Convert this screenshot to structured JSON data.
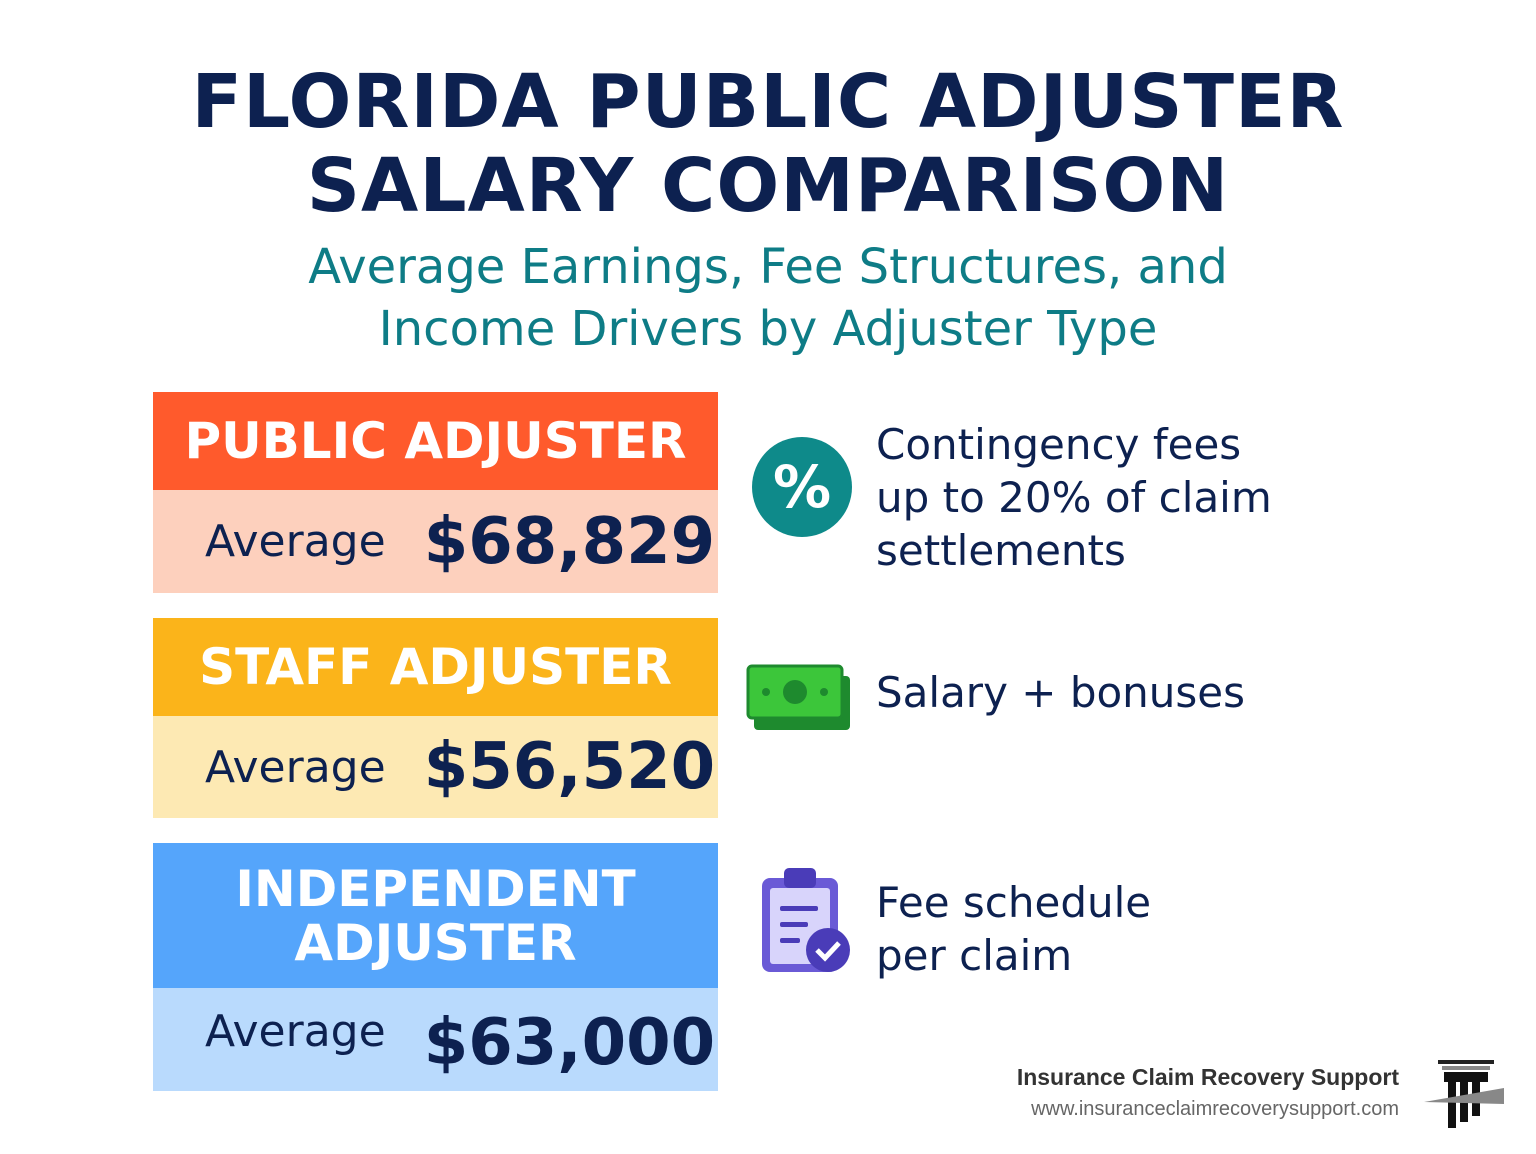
{
  "title": {
    "line1": "FLORIDA PUBLIC ADJUSTER",
    "line2": "SALARY COMPARISON"
  },
  "subtitle": {
    "line1": "Average Earnings, Fee Structures, and",
    "line2": "Income Drivers by Adjuster Type"
  },
  "cards": [
    {
      "type": "PUBLIC ADJUSTER",
      "avg_label": "Average",
      "value": "$68,829",
      "icon": "percent-icon",
      "desc_lines": [
        "Contingency fees",
        "up to 20% of claim",
        "settlements"
      ],
      "header_color": "#ff5a2c",
      "body_color": "#fdd0bd"
    },
    {
      "type": "STAFF ADJUSTER",
      "avg_label": "Average",
      "value": "$56,520",
      "icon": "money-icon",
      "desc_lines": [
        "Salary + bonuses"
      ],
      "header_color": "#fbb41a",
      "body_color": "#fde9b3"
    },
    {
      "type_line1": "INDEPENDENT",
      "type_line2": "ADJUSTER",
      "avg_label": "Average",
      "value": "$63,000",
      "icon": "clipboard-check-icon",
      "desc_lines": [
        "Fee schedule",
        "per claim"
      ],
      "header_color": "#55a5fb",
      "body_color": "#b9dafd"
    }
  ],
  "footer": {
    "name": "Insurance Claim Recovery Support",
    "url": "www.insuranceclaimrecoverysupport.com"
  }
}
